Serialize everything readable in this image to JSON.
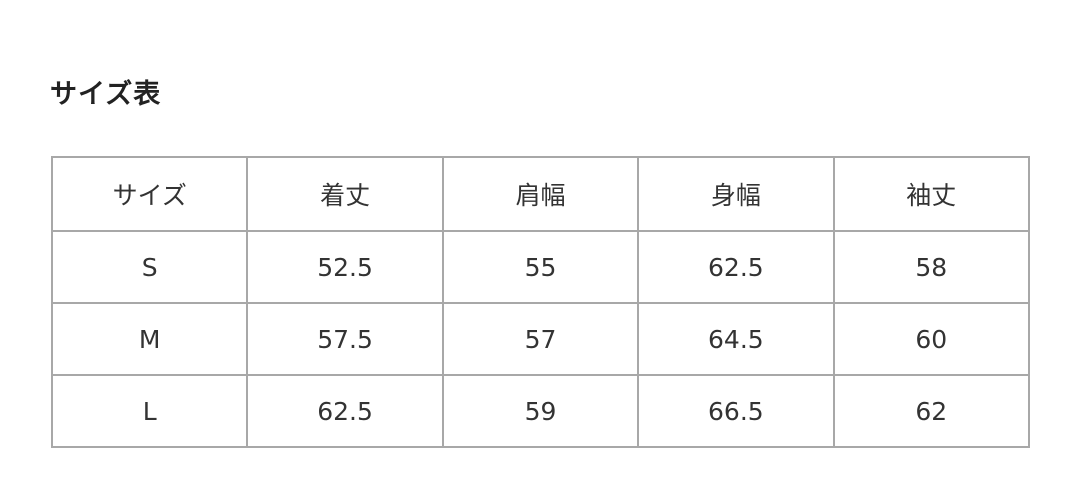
{
  "title": "サイズ表",
  "table": {
    "headers": [
      "サイズ",
      "着丈",
      "肩幅",
      "身幅",
      "袖丈"
    ],
    "rows": [
      [
        "S",
        "52.5",
        "55",
        "62.5",
        "58"
      ],
      [
        "M",
        "57.5",
        "57",
        "64.5",
        "60"
      ],
      [
        "L",
        "62.5",
        "59",
        "66.5",
        "62"
      ]
    ]
  }
}
